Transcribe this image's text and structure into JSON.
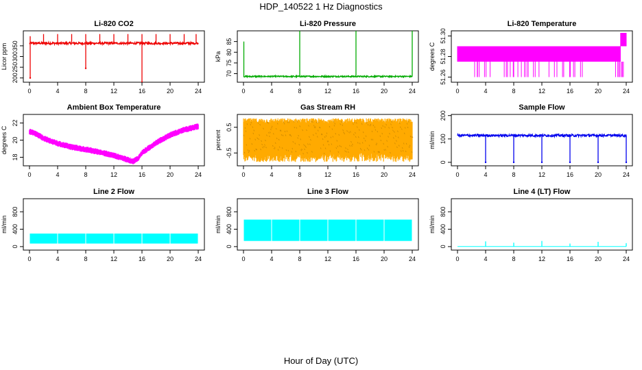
{
  "figure": {
    "title": "HDP_140522  1 Hz Diagnostics",
    "xlabel": "Hour of Day (UTC)"
  },
  "chart_data": [
    {
      "type": "line",
      "title": "Li-820 CO2",
      "ylabel": "Licor ppm",
      "color": "#ee0000",
      "xlim": [
        0,
        24
      ],
      "ylim": [
        180,
        420
      ],
      "yticks": [
        200,
        250,
        300,
        350
      ],
      "xticks": [
        0,
        4,
        8,
        12,
        16,
        20,
        24
      ],
      "series": [
        {
          "name": "CO2",
          "baseline": 362,
          "noise": 5,
          "spikes_up": [
            [
              0.1,
              395
            ],
            [
              2.0,
              405
            ],
            [
              4.0,
              405
            ],
            [
              6.0,
              405
            ],
            [
              8.0,
              405
            ],
            [
              10.0,
              405
            ],
            [
              12.0,
              405
            ],
            [
              14.0,
              405
            ],
            [
              16.0,
              405
            ],
            [
              18.0,
              405
            ],
            [
              20.0,
              405
            ],
            [
              22.0,
              405
            ],
            [
              23.7,
              405
            ]
          ],
          "spikes_down": [
            [
              0.1,
              200
            ],
            [
              8.0,
              245
            ],
            [
              16.0,
              180
            ]
          ]
        }
      ]
    },
    {
      "type": "line",
      "title": "Li-820 Pressure",
      "ylabel": "kPa",
      "color": "#00aa00",
      "xlim": [
        0,
        24
      ],
      "ylim": [
        66,
        90
      ],
      "yticks": [
        70,
        75,
        80,
        85
      ],
      "xticks": [
        0,
        4,
        8,
        12,
        16,
        20,
        24
      ],
      "series": [
        {
          "name": "Pressure",
          "baseline": 68.7,
          "noise": 0.3,
          "spikes_up": [
            [
              0.05,
              85
            ],
            [
              8.0,
              90
            ],
            [
              16.0,
              90
            ],
            [
              24.0,
              90
            ]
          ],
          "spikes_down": []
        }
      ]
    },
    {
      "type": "line",
      "title": "Li-820 Temperature",
      "ylabel": "degrees C",
      "color": "#ff00ff",
      "xlim": [
        0,
        24
      ],
      "ylim": [
        51.255,
        51.305
      ],
      "yticks": [
        51.26,
        51.28,
        51.3
      ],
      "ytick_labels": [
        "51.26",
        "51.28",
        "51.30"
      ],
      "xticks": [
        0,
        4,
        8,
        12,
        16,
        20,
        24
      ],
      "series": [
        {
          "name": "Temperature",
          "levels": [
            51.26,
            51.275,
            51.29
          ],
          "segments": [
            [
              0,
              17,
              51.275,
              51.29
            ],
            [
              17,
              23.2,
              51.275,
              51.29
            ],
            [
              23.2,
              24,
              51.29,
              51.303
            ]
          ]
        }
      ]
    },
    {
      "type": "line",
      "title": "Ambient Box Temperature",
      "ylabel": "degrees C",
      "color": "#ff00ff",
      "xlim": [
        0,
        24
      ],
      "ylim": [
        17,
        23
      ],
      "yticks": [
        18,
        20,
        22
      ],
      "xticks": [
        0,
        4,
        8,
        12,
        16,
        20,
        24
      ],
      "series": [
        {
          "name": "Ambient",
          "x": [
            0,
            1,
            2,
            4,
            6,
            8,
            10,
            12,
            14,
            14.7,
            15.5,
            16,
            18,
            20,
            22,
            24
          ],
          "y": [
            21,
            20.7,
            20.2,
            19.6,
            19.2,
            18.9,
            18.6,
            18.2,
            17.7,
            17.5,
            17.9,
            18.5,
            19.7,
            20.6,
            21.2,
            21.6
          ],
          "band": 0.6
        }
      ]
    },
    {
      "type": "line",
      "title": "Gas Stream RH",
      "ylabel": "percent",
      "color": "#ffaa00",
      "xlim": [
        0,
        24
      ],
      "ylim": [
        -1.0,
        1.0
      ],
      "yticks": [
        -0.5,
        0.5
      ],
      "xticks": [
        0,
        4,
        8,
        12,
        16,
        20,
        24
      ],
      "series": [
        {
          "name": "RH",
          "low": -0.5,
          "high": 0.75
        }
      ]
    },
    {
      "type": "line",
      "title": "Sample Flow",
      "ylabel": "ml/min",
      "color": "#0000ee",
      "xlim": [
        0,
        24
      ],
      "ylim": [
        -15,
        205
      ],
      "yticks": [
        0,
        100,
        200
      ],
      "xticks": [
        0,
        4,
        8,
        12,
        16,
        20,
        24
      ],
      "series": [
        {
          "name": "Sample",
          "baseline": 115,
          "noise": 5,
          "spikes_down": [
            [
              4,
              0
            ],
            [
              8,
              0
            ],
            [
              12,
              0
            ],
            [
              16,
              0
            ],
            [
              20,
              0
            ],
            [
              24,
              0
            ]
          ]
        }
      ]
    },
    {
      "type": "area",
      "title": "Line 2 Flow",
      "ylabel": "ml/min",
      "color": "#00ffff",
      "xlim": [
        0,
        24
      ],
      "ylim": [
        -80,
        1100
      ],
      "yticks": [
        0,
        400,
        800
      ],
      "xticks": [
        0,
        4,
        8,
        12,
        16,
        20,
        24
      ],
      "series": [
        {
          "name": "Line 2",
          "low": 70,
          "high": 300,
          "gaps": [
            4,
            8,
            12,
            16,
            20
          ]
        }
      ]
    },
    {
      "type": "area",
      "title": "Line 3 Flow",
      "ylabel": "ml/min",
      "color": "#00ffff",
      "xlim": [
        0,
        24
      ],
      "ylim": [
        -80,
        1100
      ],
      "yticks": [
        0,
        400,
        800
      ],
      "xticks": [
        0,
        4,
        8,
        12,
        16,
        20,
        24
      ],
      "series": [
        {
          "name": "Line 3",
          "low": 130,
          "high": 620,
          "gaps": [
            4,
            8,
            12,
            16,
            20
          ]
        }
      ]
    },
    {
      "type": "line",
      "title": "Line 4 (LT) Flow",
      "ylabel": "ml/min",
      "color": "#00ffff",
      "xlim": [
        0,
        24
      ],
      "ylim": [
        -80,
        1100
      ],
      "yticks": [
        0,
        400,
        800
      ],
      "xticks": [
        0,
        4,
        8,
        12,
        16,
        20,
        24
      ],
      "series": [
        {
          "name": "Line 4",
          "baseline": 2,
          "spikes_up": [
            [
              4,
              120
            ],
            [
              8,
              90
            ],
            [
              12,
              130
            ],
            [
              16,
              70
            ],
            [
              20,
              110
            ],
            [
              24,
              80
            ]
          ]
        }
      ]
    }
  ]
}
